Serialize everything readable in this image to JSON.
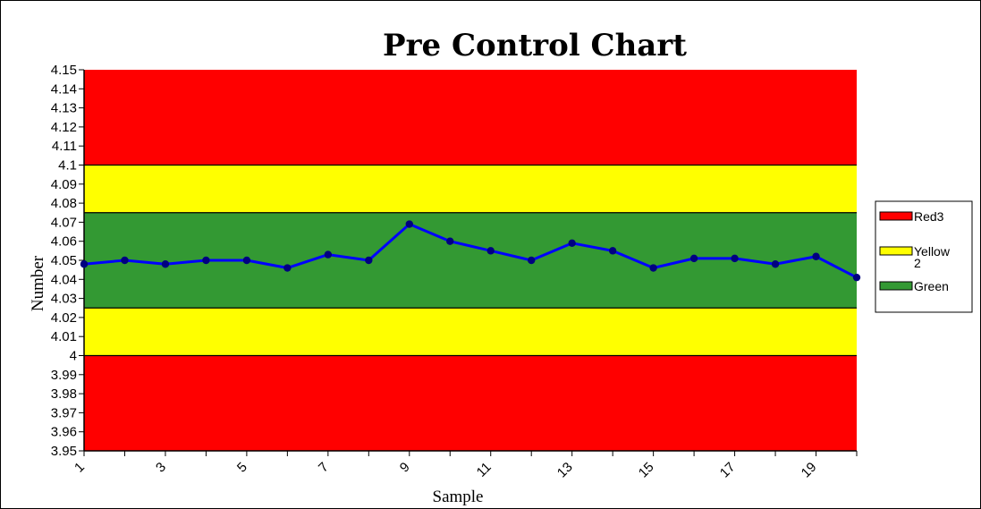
{
  "chart_data": {
    "type": "line",
    "title": "Pre Control Chart",
    "xlabel": "Sample",
    "ylabel": "Number",
    "ylim": [
      3.95,
      4.15
    ],
    "y_ticks": [
      "4.15",
      "4.14",
      "4.13",
      "4.12",
      "4.11",
      "4.1",
      "4.09",
      "4.08",
      "4.07",
      "4.06",
      "4.05",
      "4.04",
      "4.03",
      "4.02",
      "4.01",
      "4",
      "3.99",
      "3.98",
      "3.97",
      "3.96",
      "3.95"
    ],
    "x_tick_labels": [
      "1",
      "3",
      "5",
      "7",
      "9",
      "11",
      "13",
      "15",
      "17",
      "19"
    ],
    "x": [
      1,
      2,
      3,
      4,
      5,
      6,
      7,
      8,
      9,
      10,
      11,
      12,
      13,
      14,
      15,
      16,
      17,
      18,
      19,
      20
    ],
    "series": [
      {
        "values": [
          4.048,
          4.05,
          4.048,
          4.05,
          4.05,
          4.046,
          4.053,
          4.05,
          4.069,
          4.06,
          4.055,
          4.05,
          4.059,
          4.055,
          4.046,
          4.051,
          4.051,
          4.048,
          4.052,
          4.041
        ],
        "color": "#0000ff",
        "marker_color": "#000080"
      }
    ],
    "zones": [
      {
        "name": "red-top",
        "from": 4.1,
        "to": 4.15,
        "color": "#ff0000"
      },
      {
        "name": "yellow-top",
        "from": 4.075,
        "to": 4.1,
        "color": "#ffff00"
      },
      {
        "name": "green",
        "from": 4.025,
        "to": 4.075,
        "color": "#339933"
      },
      {
        "name": "yellow-bottom",
        "from": 4.0,
        "to": 4.025,
        "color": "#ffff00"
      },
      {
        "name": "red-bottom",
        "from": 3.95,
        "to": 4.0,
        "color": "#ff0000"
      }
    ],
    "legend": {
      "placement": "right",
      "entries": [
        {
          "label": "Red3",
          "color": "#ff0000"
        },
        {
          "label": "Yellow 2",
          "color": "#ffff00"
        },
        {
          "label": "Green",
          "color": "#339933"
        }
      ]
    },
    "grid": false
  }
}
